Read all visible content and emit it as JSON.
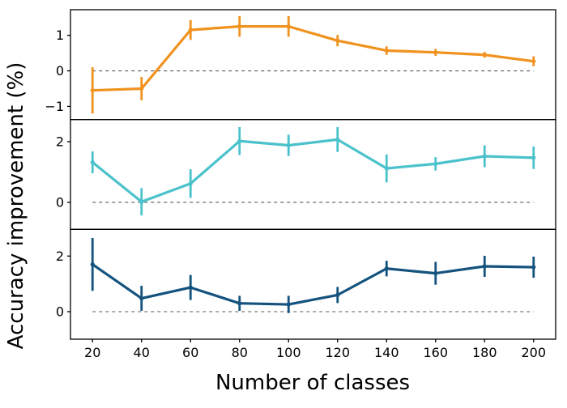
{
  "figure": {
    "background": "#ffffff",
    "spine_color": "#000000",
    "text_color": "#000000",
    "zero_line_color": "#595959"
  },
  "chart_data": {
    "type": "line",
    "title": "",
    "xlabel": "Number of classes",
    "ylabel": "Accuracy improvement (%)",
    "grid": false,
    "legend": "none",
    "x": [
      20,
      40,
      60,
      80,
      100,
      120,
      140,
      160,
      180,
      200
    ],
    "xlim": [
      11,
      209
    ],
    "x_tick_labels": [
      "20",
      "40",
      "60",
      "80",
      "100",
      "120",
      "140",
      "160",
      "180",
      "200"
    ],
    "subplots": [
      {
        "name": "top",
        "color": "#F0921E",
        "ylim": [
          -1.37,
          1.72
        ],
        "yticks": [
          {
            "v": 1,
            "label": "1"
          },
          {
            "v": 0,
            "label": "0"
          },
          {
            "v": -1,
            "label": "−1"
          }
        ],
        "zero_dashed_line_at": 0,
        "y": [
          -0.55,
          -0.5,
          1.15,
          1.25,
          1.25,
          0.85,
          0.57,
          0.52,
          0.45,
          0.27
        ],
        "yerr": [
          0.65,
          0.33,
          0.28,
          0.29,
          0.29,
          0.16,
          0.12,
          0.1,
          0.08,
          0.14
        ]
      },
      {
        "name": "middle",
        "color": "#4BC2CB",
        "ylim": [
          -0.89,
          2.73
        ],
        "yticks": [
          {
            "v": 2,
            "label": "2"
          },
          {
            "v": 0,
            "label": "0"
          }
        ],
        "zero_dashed_line_at": 0,
        "y": [
          1.32,
          0.02,
          0.62,
          2.02,
          1.88,
          2.07,
          1.12,
          1.27,
          1.52,
          1.47
        ],
        "yerr": [
          0.36,
          0.45,
          0.47,
          0.46,
          0.35,
          0.41,
          0.46,
          0.22,
          0.36,
          0.37
        ]
      },
      {
        "name": "bottom",
        "color": "#14537E",
        "ylim": [
          -0.99,
          2.96
        ],
        "yticks": [
          {
            "v": 2,
            "label": "2"
          },
          {
            "v": 0,
            "label": "0"
          }
        ],
        "zero_dashed_line_at": 0,
        "y": [
          1.7,
          0.48,
          0.87,
          0.3,
          0.26,
          0.6,
          1.55,
          1.38,
          1.63,
          1.6
        ],
        "yerr": [
          0.95,
          0.45,
          0.45,
          0.27,
          0.31,
          0.29,
          0.28,
          0.41,
          0.38,
          0.38
        ]
      }
    ]
  }
}
